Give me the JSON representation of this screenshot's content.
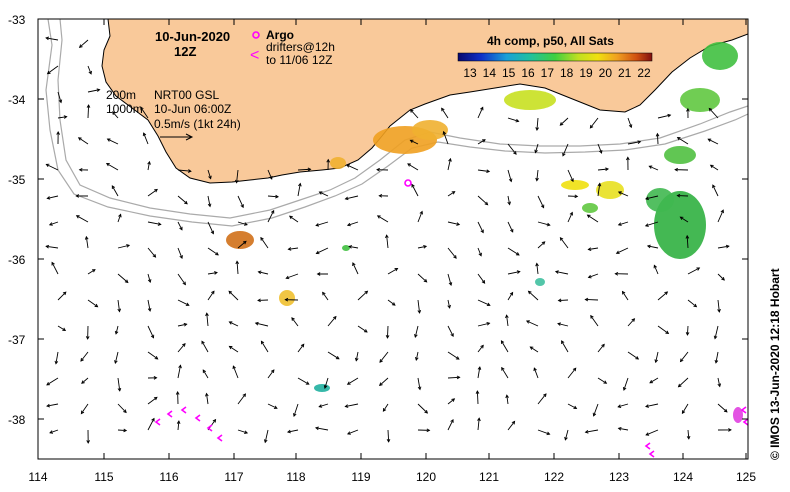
{
  "header": {
    "date": "10-Jun-2020",
    "time": "12Z"
  },
  "legend": {
    "argo_label": "Argo",
    "argo_symbol": "o",
    "drifters_line1": "drifters@12h",
    "drifters_line2": "to 11/06 12Z",
    "drifter_symbol": "<"
  },
  "info": {
    "isobath_1": "200m",
    "isobath_2": "1000m",
    "product": "NRT00 GSL",
    "analysis_time": "10-Jun 06:00Z",
    "scale_vector": "0.5m/s (1kt 24h)"
  },
  "colorbar": {
    "title": "4h comp, p50, All Sats",
    "ticks": [
      "13",
      "14",
      "15",
      "16",
      "17",
      "18",
      "19",
      "20",
      "21",
      "22"
    ],
    "min": 12.5,
    "max": 22.5
  },
  "credit": "© IMOS 13-Jun-2020 12:18 Hobart",
  "axes": {
    "x_ticks": [
      "114",
      "115",
      "116",
      "117",
      "118",
      "119",
      "120",
      "121",
      "122",
      "123",
      "124",
      "125"
    ],
    "y_ticks": [
      "-33",
      "-34",
      "-35",
      "-36",
      "-37",
      "-38"
    ],
    "lon_range": [
      114,
      125
    ],
    "lat_range": [
      -38.5,
      -33
    ]
  },
  "colors": {
    "land": "#f9c99a",
    "argo": "#ff00ff",
    "drifter": "#ff00ff",
    "isobath": "#aaaaaa"
  }
}
